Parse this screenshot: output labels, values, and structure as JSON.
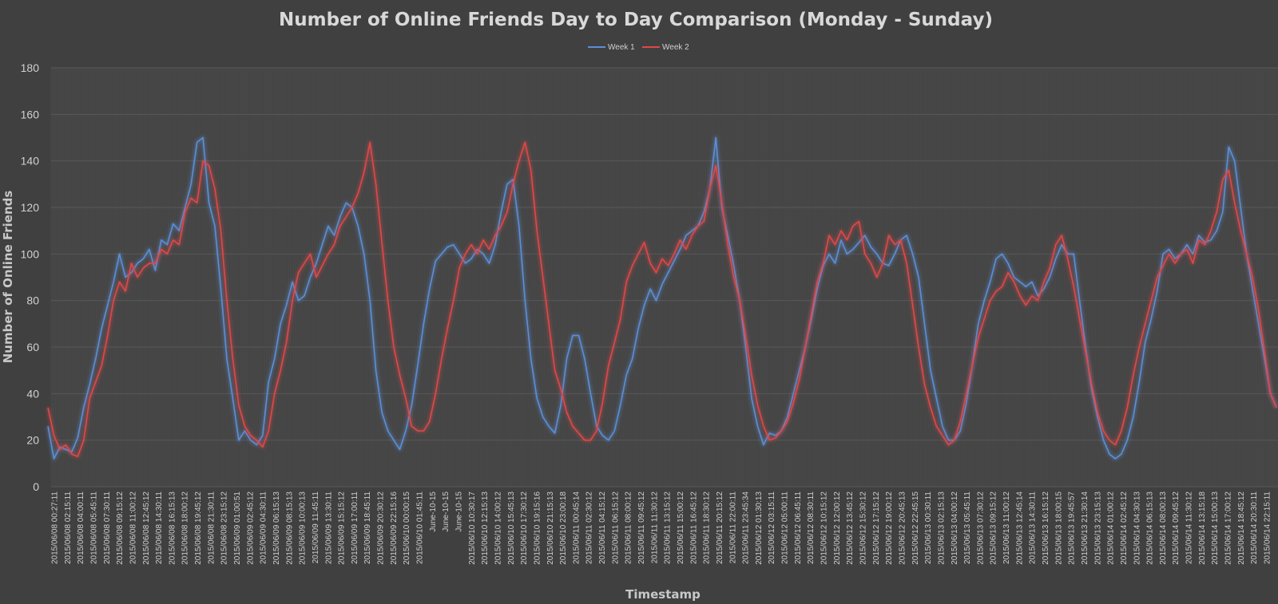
{
  "chart_data": {
    "type": "line",
    "title": "Number of Online Friends Day to Day Comparison (Monday - Sunday)",
    "xlabel": "Timestamp",
    "ylabel": "Number of Online Friends",
    "ylim": [
      0,
      180
    ],
    "yticks": [
      0,
      20,
      40,
      60,
      80,
      100,
      120,
      140,
      160,
      180
    ],
    "grid": true,
    "legend_position": "top-center",
    "x_tick_labels": [
      "2015/06/08 00:27:11",
      "2015/06/08 02:15:11",
      "2015/06/08 04:00:11",
      "2015/06/08 05:45:11",
      "2015/06/08 07:30:11",
      "2015/06/08 09:15:12",
      "2015/06/08 11:00:12",
      "2015/06/08 12:45:12",
      "2015/06/08 14:30:11",
      "2015/06/08 16:15:13",
      "2015/06/08 18:00:12",
      "2015/06/08 19:45:12",
      "2015/06/08 21:30:11",
      "2015/06/08 23:15:12",
      "2015/06/09 01:00:51",
      "2015/06/09 02:45:12",
      "2015/06/09 04:30:11",
      "2015/06/09 06:15:13",
      "2015/06/09 08:15:13",
      "2015/06/09 10:00:13",
      "2015/06/09 11:45:11",
      "2015/06/09 13:30:11",
      "2015/06/09 15:15:12",
      "2015/06/09 17:00:11",
      "2015/06/09 18:45:11",
      "2015/06/09 20:30:12",
      "2015/06/09 22:15:16",
      "2015/06/10 00:00:15",
      "2015/06/10 01:45:11",
      "June-10-15",
      "June-10-15",
      "June-10-15",
      "2015/06/10 10:30:17",
      "2015/06/10 12:15:13",
      "2015/06/10 14:00:12",
      "2015/06/10 15:45:13",
      "2015/06/10 17:30:12",
      "2015/06/10 19:15:16",
      "2015/06/10 21:15:13",
      "2015/06/10 23:00:18",
      "2015/06/11 00:45:14",
      "2015/06/11 02:30:12",
      "2015/06/11 04:15:12",
      "2015/06/11 06:15:12",
      "2015/06/11 08:00:12",
      "2015/06/11 09:45:12",
      "2015/06/11 11:30:12",
      "2015/06/11 13:15:12",
      "2015/06/11 15:00:12",
      "2015/06/11 16:45:12",
      "2015/06/11 18:30:12",
      "2015/06/11 20:15:12",
      "2015/06/11 22:00:11",
      "2015/06/11 23:45:34",
      "2015/06/12 01:30:13",
      "2015/06/12 03:15:11",
      "2015/06/12 05:00:11",
      "2015/06/12 06:45:11",
      "2015/06/12 08:30:11",
      "2015/06/12 10:15:12",
      "2015/06/12 12:00:12",
      "2015/06/12 13:45:12",
      "2015/06/12 15:30:12",
      "2015/06/12 17:15:12",
      "2015/06/12 19:00:12",
      "2015/06/12 20:45:13",
      "2015/06/12 22:45:15",
      "2015/06/13 00:30:11",
      "2015/06/13 02:15:13",
      "2015/06/13 04:00:12",
      "2015/06/13 05:45:11",
      "2015/06/13 07:30:12",
      "2015/06/13 09:15:12",
      "2015/06/13 11:00:12",
      "2015/06/13 12:45:14",
      "2015/06/13 14:30:11",
      "2015/06/13 16:15:12",
      "2015/06/13 18:00:15",
      "2015/06/13 19:45:57",
      "2015/06/13 21:30:14",
      "2015/06/13 23:15:13",
      "2015/06/14 01:00:12",
      "2015/06/14 02:45:12",
      "2015/06/14 04:30:13",
      "2015/06/14 06:15:13",
      "2015/06/14 08:00:13",
      "2015/06/14 09:45:12",
      "2015/06/14 11:30:12",
      "2015/06/14 13:15:18",
      "2015/06/14 15:00:13",
      "2015/06/14 17:00:12",
      "2015/06/14 18:45:12",
      "2015/06/14 20:30:11",
      "2015/06/14 22:15:11"
    ],
    "series": [
      {
        "name": "Week 1",
        "color": "#5b8fd6",
        "values": [
          26,
          12,
          17,
          16,
          15,
          21,
          34,
          44,
          55,
          68,
          78,
          88,
          100,
          90,
          92,
          96,
          98,
          102,
          93,
          106,
          104,
          113,
          110,
          120,
          130,
          148,
          150,
          122,
          112,
          85,
          55,
          38,
          20,
          24,
          20,
          18,
          22,
          45,
          55,
          70,
          78,
          88,
          80,
          82,
          90,
          96,
          104,
          112,
          108,
          116,
          122,
          120,
          112,
          100,
          80,
          50,
          32,
          24,
          20,
          16,
          24,
          35,
          52,
          70,
          85,
          97,
          100,
          103,
          104,
          100,
          96,
          98,
          102,
          100,
          96,
          104,
          118,
          130,
          132,
          112,
          80,
          55,
          38,
          30,
          26,
          23,
          35,
          55,
          65,
          65,
          55,
          40,
          26,
          22,
          20,
          24,
          35,
          48,
          55,
          68,
          78,
          85,
          80,
          87,
          92,
          97,
          102,
          108,
          110,
          112,
          118,
          128,
          150,
          120,
          108,
          95,
          80,
          60,
          38,
          26,
          18,
          23,
          22,
          24,
          30,
          40,
          50,
          60,
          72,
          85,
          95,
          100,
          96,
          106,
          100,
          102,
          105,
          108,
          103,
          100,
          96,
          95,
          100,
          106,
          108,
          100,
          90,
          70,
          50,
          38,
          26,
          20,
          20,
          24,
          36,
          52,
          70,
          80,
          88,
          98,
          100,
          96,
          90,
          88,
          86,
          88,
          82,
          85,
          90,
          98,
          104,
          100,
          100,
          80,
          60,
          42,
          30,
          20,
          14,
          12,
          14,
          20,
          30,
          45,
          62,
          72,
          84,
          100,
          102,
          98,
          100,
          104,
          100,
          108,
          105,
          106,
          110,
          118,
          146,
          140,
          120,
          100,
          85,
          70,
          55,
          40,
          34
        ]
      },
      {
        "name": "Week 2",
        "color": "#e04848",
        "values": [
          34,
          22,
          16,
          18,
          14,
          13,
          20,
          38,
          45,
          52,
          65,
          80,
          88,
          84,
          96,
          90,
          94,
          96,
          96,
          102,
          100,
          106,
          104,
          118,
          124,
          122,
          140,
          138,
          128,
          110,
          80,
          55,
          35,
          26,
          22,
          20,
          17,
          24,
          40,
          50,
          62,
          80,
          92,
          96,
          100,
          90,
          95,
          100,
          104,
          112,
          116,
          120,
          126,
          135,
          148,
          130,
          105,
          80,
          60,
          48,
          38,
          26,
          24,
          24,
          28,
          40,
          55,
          68,
          80,
          94,
          100,
          104,
          100,
          106,
          102,
          108,
          112,
          118,
          130,
          140,
          148,
          136,
          110,
          90,
          70,
          50,
          42,
          32,
          26,
          23,
          20,
          20,
          24,
          36,
          52,
          62,
          72,
          88,
          95,
          100,
          105,
          96,
          92,
          98,
          95,
          100,
          106,
          102,
          108,
          112,
          114,
          128,
          138,
          122,
          104,
          90,
          80,
          65,
          48,
          35,
          26,
          20,
          21,
          24,
          28,
          36,
          46,
          60,
          74,
          88,
          96,
          108,
          104,
          110,
          106,
          112,
          114,
          100,
          96,
          90,
          96,
          108,
          104,
          106,
          96,
          78,
          60,
          44,
          34,
          26,
          22,
          18,
          20,
          28,
          40,
          52,
          64,
          72,
          80,
          84,
          86,
          92,
          88,
          82,
          78,
          82,
          80,
          88,
          94,
          104,
          108,
          98,
          86,
          72,
          58,
          44,
          32,
          24,
          20,
          18,
          24,
          34,
          48,
          60,
          70,
          80,
          90,
          95,
          100,
          96,
          100,
          102,
          96,
          106,
          104,
          110,
          118,
          132,
          136,
          122,
          110,
          100,
          90,
          76,
          58,
          40,
          34
        ]
      }
    ]
  }
}
